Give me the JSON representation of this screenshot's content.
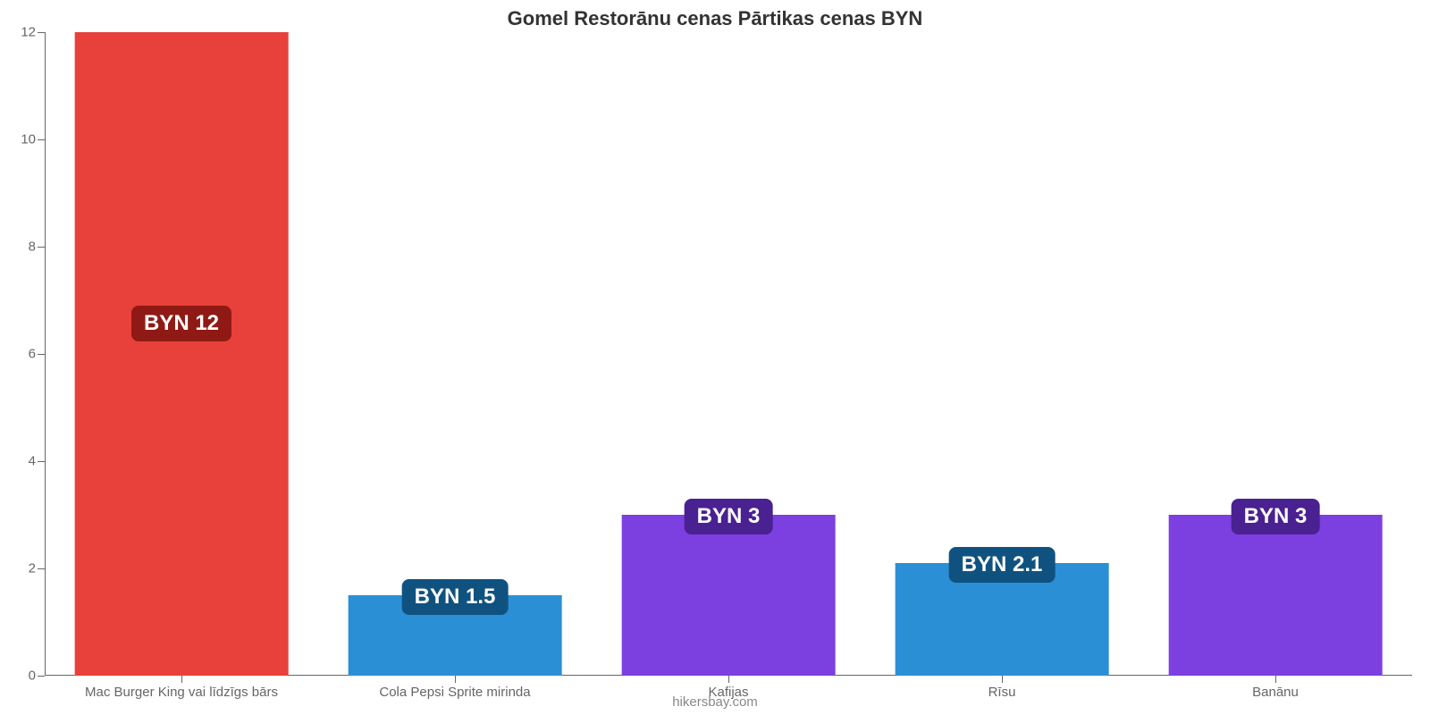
{
  "chart": {
    "type": "bar",
    "title": "Gomel Restorānu cenas Pārtikas cenas BYN",
    "title_fontsize": 22,
    "title_color": "#333333",
    "background_color": "#ffffff",
    "axis_color": "#666666",
    "label_color": "#666666",
    "label_fontsize": 15,
    "ylim": [
      0,
      12
    ],
    "yticks": [
      0,
      2,
      4,
      6,
      8,
      10,
      12
    ],
    "categories": [
      "Mac Burger King vai līdzīgs bārs",
      "Cola Pepsi Sprite mirinda",
      "Kafijas",
      "Rīsu",
      "Banānu"
    ],
    "values": [
      12,
      1.5,
      3,
      2.1,
      3
    ],
    "value_labels": [
      "BYN 12",
      "BYN 1.5",
      "BYN 3",
      "BYN 2.1",
      "BYN 3"
    ],
    "bar_colors": [
      "#e8403a",
      "#2b8fd6",
      "#7c3fe0",
      "#2b8fd6",
      "#7c3fe0"
    ],
    "value_label_bg": [
      "#8f1a15",
      "#10527f",
      "#4a2190",
      "#10527f",
      "#4a2190"
    ],
    "value_label_text_color": "#ffffff",
    "value_label_fontsize": 24,
    "bar_width_ratio": 0.78,
    "attribution": "hikersbay.com",
    "attribution_color": "#888888",
    "attribution_fontsize": 15
  }
}
